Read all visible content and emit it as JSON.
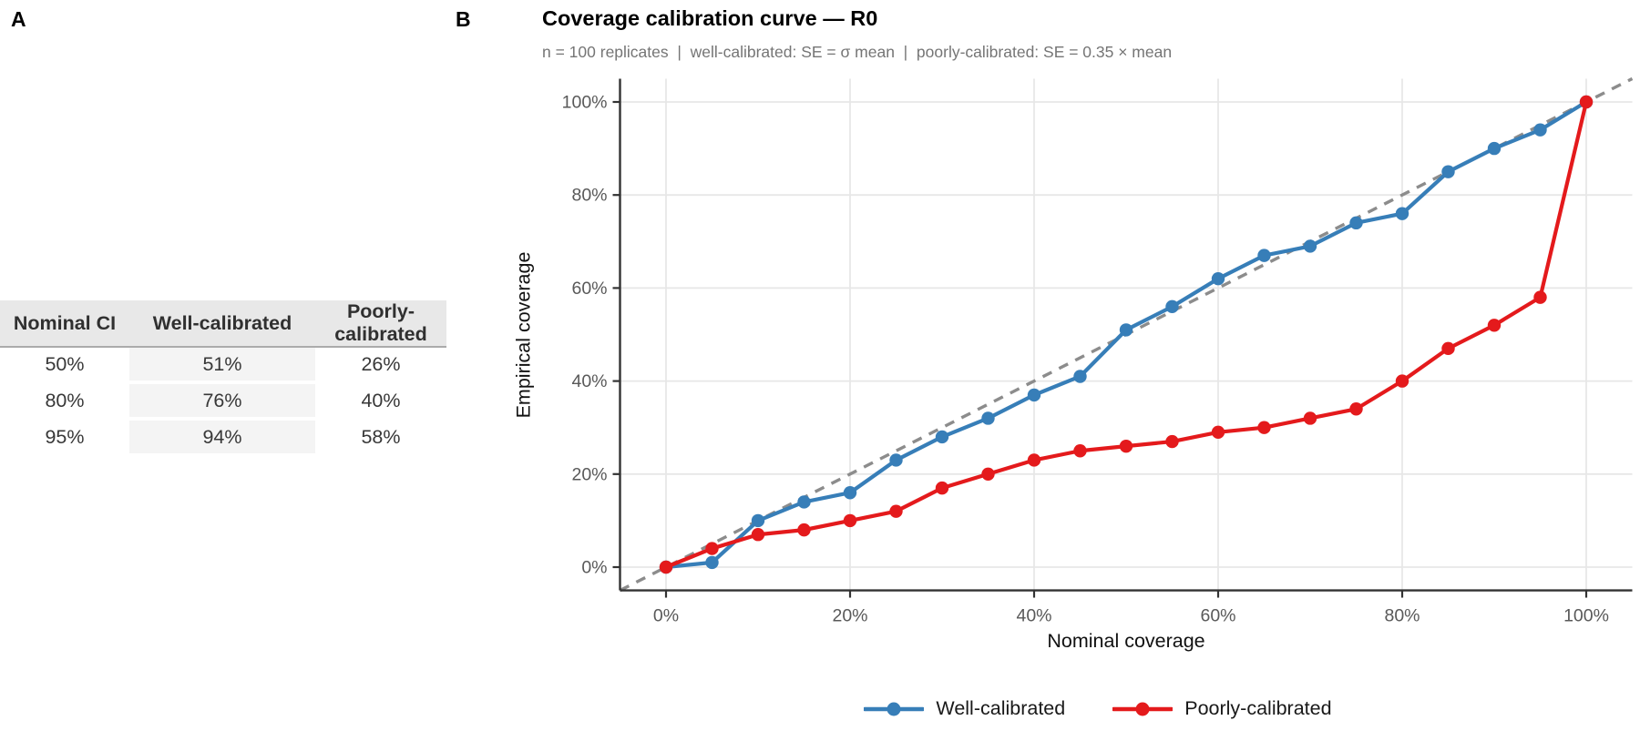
{
  "panel_a": {
    "label": "A",
    "table": {
      "headers": [
        "Nominal CI",
        "Well-calibrated",
        "Poorly-calibrated"
      ],
      "rows": [
        [
          "50%",
          "51%",
          "26%"
        ],
        [
          "80%",
          "76%",
          "40%"
        ],
        [
          "95%",
          "94%",
          "58%"
        ]
      ]
    }
  },
  "panel_b": {
    "label": "B",
    "title": "Coverage calibration curve — R0",
    "subtitle": "n = 100 replicates  |  well-calibrated: SE = σ mean  |  poorly-calibrated: SE = 0.35 × mean",
    "x_axis_title": "Nominal coverage",
    "y_axis_title": "Empirical coverage"
  },
  "chart_data": {
    "type": "line",
    "title": "Coverage calibration curve — R0",
    "subtitle": "n = 100 replicates | well-calibrated: SE = σ mean | poorly-calibrated: SE = 0.35 × mean",
    "xlabel": "Nominal coverage",
    "ylabel": "Empirical coverage",
    "x": [
      0,
      5,
      10,
      15,
      20,
      25,
      30,
      35,
      40,
      45,
      50,
      55,
      60,
      65,
      70,
      75,
      80,
      85,
      90,
      95,
      100
    ],
    "series": [
      {
        "name": "Well-calibrated",
        "color": "#377EB8",
        "values": [
          0,
          1,
          10,
          14,
          16,
          23,
          28,
          32,
          37,
          41,
          51,
          56,
          62,
          67,
          69,
          74,
          76,
          85,
          90,
          94,
          100
        ]
      },
      {
        "name": "Poorly-calibrated",
        "color": "#E41A1C",
        "values": [
          0,
          4,
          7,
          8,
          10,
          12,
          17,
          20,
          23,
          25,
          26,
          27,
          29,
          30,
          32,
          34,
          40,
          47,
          52,
          58,
          100
        ]
      }
    ],
    "reference_line": {
      "type": "identity y = x",
      "style": "dashed",
      "color": "#8C8C8C"
    },
    "xlim": [
      -5,
      105
    ],
    "ylim": [
      -5,
      105
    ],
    "ticks": [
      0,
      20,
      40,
      60,
      80,
      100
    ],
    "x_tick_labels": [
      "0%",
      "20%",
      "40%",
      "60%",
      "80%",
      "100%"
    ],
    "y_tick_labels": [
      "0%",
      "20%",
      "40%",
      "60%",
      "80%",
      "100%"
    ],
    "grid": "major gridlines only, light gray, white background",
    "legend_position": "bottom"
  },
  "colors": {
    "well_calibrated": "#377EB8",
    "poorly_calibrated": "#E41A1C",
    "reference_dash": "#8C8C8C",
    "gridline": "#E7E7E7",
    "axis_line": "#333333",
    "tick_label": "#595959",
    "subtitle_text": "#757575",
    "table_header_bg": "#E8E8E8",
    "table_stripe_bg": "#F4F4F4"
  }
}
